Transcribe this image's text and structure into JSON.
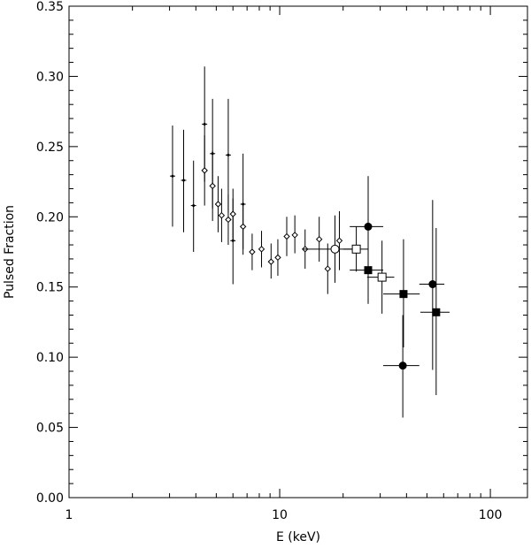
{
  "chart_data": {
    "type": "scatter",
    "title": "",
    "xlabel": "E (keV)",
    "ylabel": "Pulsed Fraction",
    "xscale": "log",
    "xlim": [
      1,
      150
    ],
    "ylim": [
      0.0,
      0.35
    ],
    "xticks": [
      {
        "value": 1,
        "label": "1"
      },
      {
        "value": 10,
        "label": "10"
      },
      {
        "value": 100,
        "label": "100"
      }
    ],
    "yticks": [
      {
        "value": 0.0,
        "label": "0.00"
      },
      {
        "value": 0.05,
        "label": "0.05"
      },
      {
        "value": 0.1,
        "label": "0.10"
      },
      {
        "value": 0.15,
        "label": "0.15"
      },
      {
        "value": 0.2,
        "label": "0.20"
      },
      {
        "value": 0.25,
        "label": "0.25"
      },
      {
        "value": 0.3,
        "label": "0.30"
      },
      {
        "value": 0.35,
        "label": "0.35"
      }
    ],
    "grid": false,
    "series": [
      {
        "marker": "small-dot",
        "points": [
          {
            "x": 3.1,
            "y": 0.229,
            "ylo": 0.193,
            "yhi": 0.265
          },
          {
            "x": 3.5,
            "y": 0.226,
            "ylo": 0.189,
            "yhi": 0.262
          },
          {
            "x": 3.9,
            "y": 0.208,
            "ylo": 0.175,
            "yhi": 0.24
          },
          {
            "x": 4.4,
            "y": 0.266,
            "ylo": 0.225,
            "yhi": 0.307
          },
          {
            "x": 4.8,
            "y": 0.245,
            "ylo": 0.206,
            "yhi": 0.284
          },
          {
            "x": 5.7,
            "y": 0.244,
            "ylo": 0.203,
            "yhi": 0.284
          },
          {
            "x": 6.0,
            "y": 0.183,
            "ylo": 0.152,
            "yhi": 0.213
          },
          {
            "x": 6.7,
            "y": 0.209,
            "ylo": 0.173,
            "yhi": 0.245
          }
        ]
      },
      {
        "marker": "small-open-diamond",
        "points": [
          {
            "x": 4.4,
            "y": 0.233,
            "ylo": 0.208,
            "yhi": 0.258
          },
          {
            "x": 4.8,
            "y": 0.222,
            "ylo": 0.197,
            "yhi": 0.247
          },
          {
            "x": 5.1,
            "y": 0.209,
            "ylo": 0.189,
            "yhi": 0.229
          },
          {
            "x": 5.3,
            "y": 0.201,
            "ylo": 0.182,
            "yhi": 0.22
          },
          {
            "x": 5.7,
            "y": 0.198,
            "ylo": 0.18,
            "yhi": 0.216
          },
          {
            "x": 6.0,
            "y": 0.202,
            "ylo": 0.184,
            "yhi": 0.22
          },
          {
            "x": 6.7,
            "y": 0.193,
            "ylo": 0.177,
            "yhi": 0.209
          },
          {
            "x": 7.4,
            "y": 0.175,
            "ylo": 0.162,
            "yhi": 0.188
          },
          {
            "x": 8.2,
            "y": 0.177,
            "ylo": 0.164,
            "yhi": 0.19
          },
          {
            "x": 9.1,
            "y": 0.168,
            "ylo": 0.156,
            "yhi": 0.181
          },
          {
            "x": 9.8,
            "y": 0.171,
            "ylo": 0.158,
            "yhi": 0.184
          },
          {
            "x": 10.8,
            "y": 0.186,
            "ylo": 0.172,
            "yhi": 0.2
          },
          {
            "x": 11.8,
            "y": 0.187,
            "ylo": 0.174,
            "yhi": 0.201
          },
          {
            "x": 13.2,
            "y": 0.177,
            "ylo": 0.163,
            "yhi": 0.191
          },
          {
            "x": 15.4,
            "y": 0.184,
            "ylo": 0.168,
            "yhi": 0.2
          },
          {
            "x": 16.9,
            "y": 0.163,
            "ylo": 0.145,
            "yhi": 0.181
          },
          {
            "x": 19.2,
            "y": 0.183,
            "ylo": 0.162,
            "yhi": 0.204
          }
        ]
      },
      {
        "marker": "open-circle",
        "points": [
          {
            "x": 18.3,
            "y": 0.177,
            "ylo": 0.153,
            "yhi": 0.201,
            "xlo": 12.9,
            "xhi": 24.0
          }
        ]
      },
      {
        "marker": "open-square",
        "points": [
          {
            "x": 23.1,
            "y": 0.177,
            "ylo": 0.161,
            "yhi": 0.193,
            "xlo": 20.0,
            "xhi": 26.3
          },
          {
            "x": 30.6,
            "y": 0.157,
            "ylo": 0.131,
            "yhi": 0.183,
            "xlo": 26.0,
            "xhi": 35.0
          }
        ]
      },
      {
        "marker": "filled-circle",
        "points": [
          {
            "x": 26.3,
            "y": 0.193,
            "ylo": 0.157,
            "yhi": 0.229,
            "xlo": 21.5,
            "xhi": 31.0
          },
          {
            "x": 38.4,
            "y": 0.094,
            "ylo": 0.057,
            "yhi": 0.13,
            "xlo": 31.0,
            "xhi": 46.0
          },
          {
            "x": 53.2,
            "y": 0.152,
            "ylo": 0.091,
            "yhi": 0.212,
            "xlo": 46.0,
            "xhi": 60.5
          }
        ]
      },
      {
        "marker": "filled-square",
        "points": [
          {
            "x": 26.3,
            "y": 0.162,
            "ylo": 0.138,
            "yhi": 0.186,
            "xlo": 21.5,
            "xhi": 31.0
          },
          {
            "x": 38.7,
            "y": 0.145,
            "ylo": 0.107,
            "yhi": 0.184,
            "xlo": 31.0,
            "xhi": 46.2
          },
          {
            "x": 55.3,
            "y": 0.132,
            "ylo": 0.073,
            "yhi": 0.192,
            "xlo": 46.5,
            "xhi": 64.0
          }
        ]
      }
    ]
  }
}
